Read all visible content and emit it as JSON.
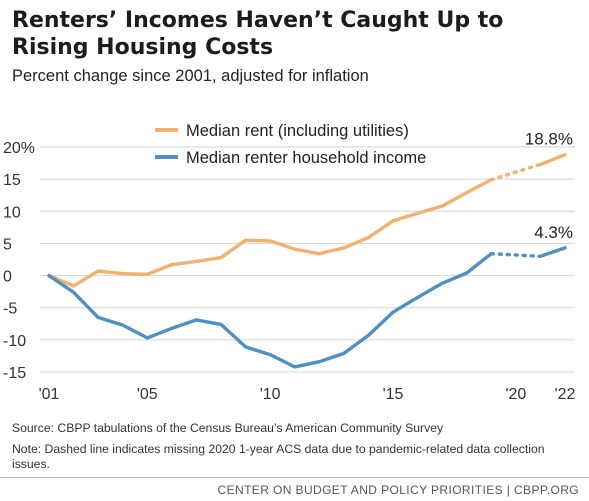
{
  "header": {
    "title": "Renters’ Incomes Haven’t Caught Up to Rising Housing Costs",
    "subtitle": "Percent change since 2001, adjusted for inflation"
  },
  "footnotes": {
    "source": "Source: CBPP tabulations of the Census Bureau’s American Community Survey",
    "note": "Note: Dashed line indicates missing 2020 1-year ACS data due to pandemic-related data collection issues."
  },
  "footer": {
    "org": "CENTER ON BUDGET AND POLICY PRIORITIES | CBPP.ORG"
  },
  "chart_data": {
    "type": "line",
    "title": "",
    "xlabel": "",
    "ylabel": "",
    "xlim": [
      2001,
      2022
    ],
    "ylim": [
      -15,
      20
    ],
    "y_ticks": [
      -15,
      -10,
      -5,
      0,
      5,
      10,
      15,
      20
    ],
    "y_tick_labels": [
      "-15",
      "-10",
      "-5",
      "0",
      "5",
      "10",
      "15",
      "20%"
    ],
    "x_ticks": [
      2001,
      2005,
      2010,
      2015,
      2020,
      2022
    ],
    "x_tick_labels": [
      "'01",
      "'05",
      "'10",
      "'15",
      "'20",
      "'22"
    ],
    "grid": "horizontal",
    "legend": "top-center",
    "missing_year": 2020,
    "series": [
      {
        "name": "Median rent (including utilities)",
        "color": "#f2b16c",
        "x": [
          2001,
          2002,
          2003,
          2004,
          2005,
          2006,
          2007,
          2008,
          2009,
          2010,
          2011,
          2012,
          2013,
          2014,
          2015,
          2016,
          2017,
          2018,
          2019,
          2021,
          2022
        ],
        "values": [
          0,
          -1.6,
          0.7,
          0.3,
          0.2,
          1.7,
          2.2,
          2.8,
          5.5,
          5.4,
          4.1,
          3.4,
          4.3,
          5.9,
          8.5,
          9.7,
          10.8,
          12.9,
          14.9,
          17.3,
          18.8
        ],
        "end_label": "18.8%"
      },
      {
        "name": "Median renter household income",
        "color": "#4f8fc3",
        "x": [
          2001,
          2002,
          2003,
          2004,
          2005,
          2006,
          2007,
          2008,
          2009,
          2010,
          2011,
          2012,
          2013,
          2014,
          2015,
          2016,
          2017,
          2018,
          2019,
          2021,
          2022
        ],
        "values": [
          0,
          -2.6,
          -6.5,
          -7.7,
          -9.7,
          -8.2,
          -6.9,
          -7.6,
          -11.1,
          -12.3,
          -14.2,
          -13.4,
          -12.1,
          -9.3,
          -5.7,
          -3.4,
          -1.2,
          0.4,
          3.4,
          3.0,
          4.3
        ],
        "end_label": "4.3%"
      }
    ]
  }
}
